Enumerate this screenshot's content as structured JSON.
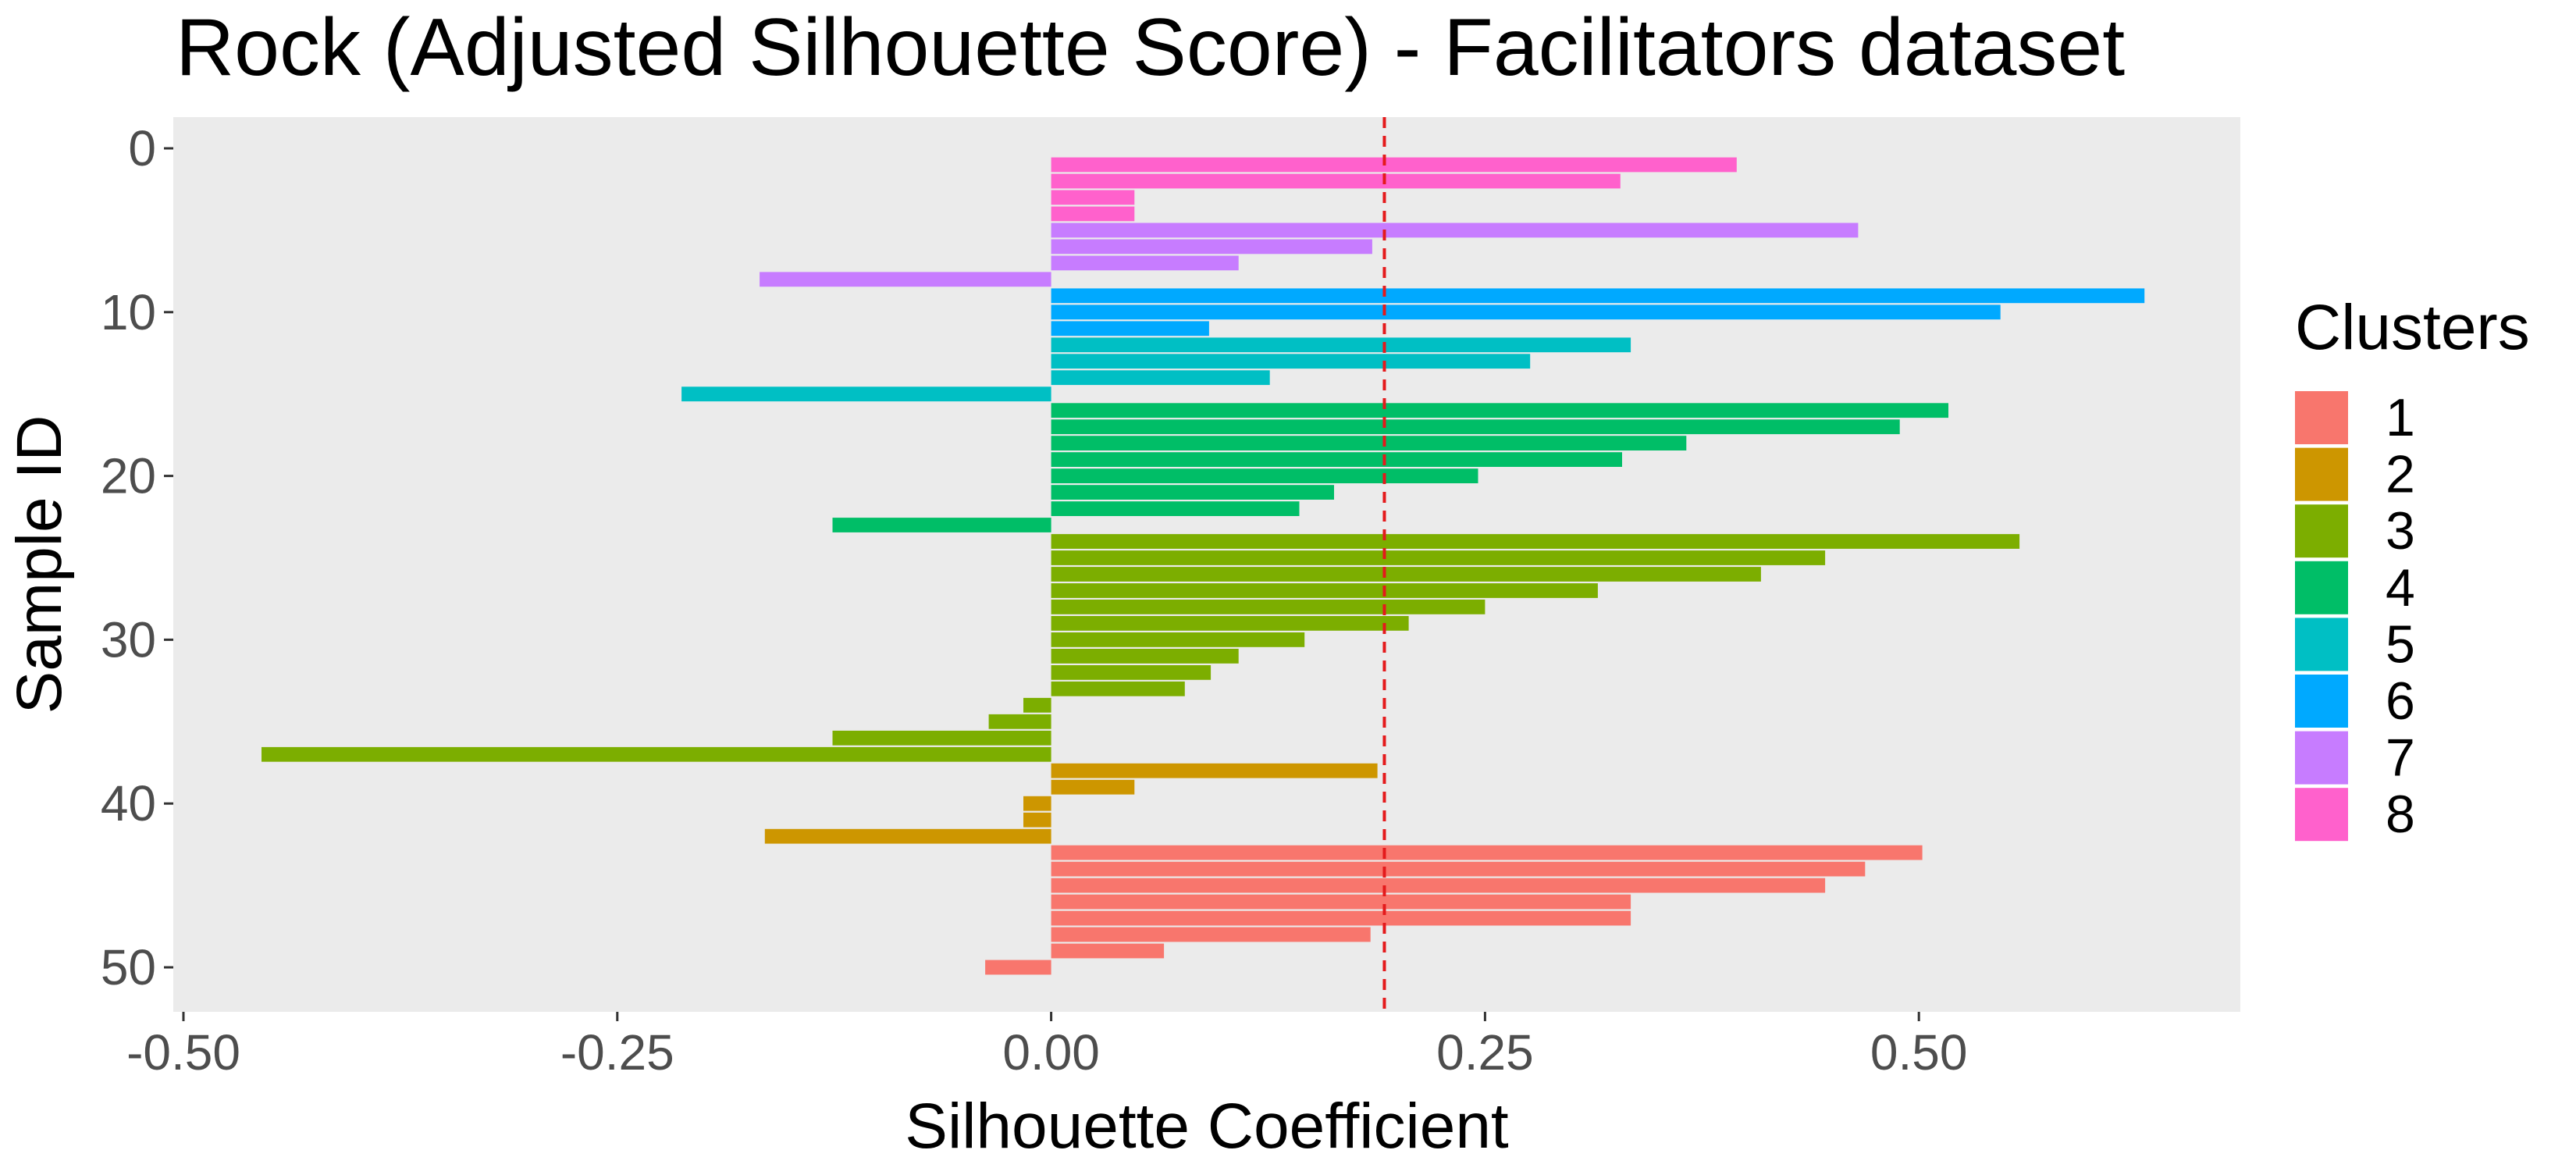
{
  "chart_data": {
    "type": "bar",
    "orientation": "horizontal",
    "title": "Rock (Adjusted Silhouette Score) - Facilitators dataset",
    "xlabel": "Silhouette Coefficient",
    "ylabel": "Sample ID",
    "xlim": [
      -0.5,
      0.68
    ],
    "ylim": [
      0,
      52
    ],
    "x_ticks": [
      -0.5,
      -0.25,
      0.0,
      0.25,
      0.5
    ],
    "x_tick_labels": [
      "-0.50",
      "-0.25",
      "0.00",
      "0.25",
      "0.50"
    ],
    "y_ticks": [
      0,
      10,
      20,
      30,
      40,
      50
    ],
    "y_tick_labels": [
      "0",
      "10",
      "20",
      "30",
      "40",
      "50"
    ],
    "reference_line": {
      "x": 0.192,
      "style": "dashed",
      "color": "#e41a1c"
    },
    "grid": false,
    "panel_background": "#ebebeb",
    "legend": {
      "title": "Clusters",
      "position": "right",
      "entries": [
        "1",
        "2",
        "3",
        "4",
        "5",
        "6",
        "7",
        "8"
      ]
    },
    "cluster_colors": {
      "1": "#F8766D",
      "2": "#CD9600",
      "3": "#7CAE00",
      "4": "#00BE67",
      "5": "#00BFC4",
      "6": "#00A9FF",
      "7": "#C77CFF",
      "8": "#FF61CC"
    },
    "bars": [
      {
        "id": 1,
        "value": 0.395,
        "cluster": "8"
      },
      {
        "id": 2,
        "value": 0.328,
        "cluster": "8"
      },
      {
        "id": 3,
        "value": 0.048,
        "cluster": "8"
      },
      {
        "id": 4,
        "value": 0.048,
        "cluster": "8"
      },
      {
        "id": 5,
        "value": 0.465,
        "cluster": "7"
      },
      {
        "id": 6,
        "value": 0.185,
        "cluster": "7"
      },
      {
        "id": 7,
        "value": 0.108,
        "cluster": "7"
      },
      {
        "id": 8,
        "value": -0.168,
        "cluster": "7"
      },
      {
        "id": 9,
        "value": 0.63,
        "cluster": "6"
      },
      {
        "id": 10,
        "value": 0.547,
        "cluster": "6"
      },
      {
        "id": 11,
        "value": 0.091,
        "cluster": "6"
      },
      {
        "id": 12,
        "value": 0.334,
        "cluster": "5"
      },
      {
        "id": 13,
        "value": 0.276,
        "cluster": "5"
      },
      {
        "id": 14,
        "value": 0.126,
        "cluster": "5"
      },
      {
        "id": 15,
        "value": -0.213,
        "cluster": "5"
      },
      {
        "id": 16,
        "value": 0.517,
        "cluster": "4"
      },
      {
        "id": 17,
        "value": 0.489,
        "cluster": "4"
      },
      {
        "id": 18,
        "value": 0.366,
        "cluster": "4"
      },
      {
        "id": 19,
        "value": 0.329,
        "cluster": "4"
      },
      {
        "id": 20,
        "value": 0.246,
        "cluster": "4"
      },
      {
        "id": 21,
        "value": 0.163,
        "cluster": "4"
      },
      {
        "id": 22,
        "value": 0.143,
        "cluster": "4"
      },
      {
        "id": 23,
        "value": -0.126,
        "cluster": "4"
      },
      {
        "id": 24,
        "value": 0.558,
        "cluster": "3"
      },
      {
        "id": 25,
        "value": 0.446,
        "cluster": "3"
      },
      {
        "id": 26,
        "value": 0.409,
        "cluster": "3"
      },
      {
        "id": 27,
        "value": 0.315,
        "cluster": "3"
      },
      {
        "id": 28,
        "value": 0.25,
        "cluster": "3"
      },
      {
        "id": 29,
        "value": 0.206,
        "cluster": "3"
      },
      {
        "id": 30,
        "value": 0.146,
        "cluster": "3"
      },
      {
        "id": 31,
        "value": 0.108,
        "cluster": "3"
      },
      {
        "id": 32,
        "value": 0.092,
        "cluster": "3"
      },
      {
        "id": 33,
        "value": 0.077,
        "cluster": "3"
      },
      {
        "id": 34,
        "value": -0.016,
        "cluster": "3"
      },
      {
        "id": 35,
        "value": -0.036,
        "cluster": "3"
      },
      {
        "id": 36,
        "value": -0.126,
        "cluster": "3"
      },
      {
        "id": 37,
        "value": -0.455,
        "cluster": "3"
      },
      {
        "id": 38,
        "value": 0.188,
        "cluster": "2"
      },
      {
        "id": 39,
        "value": 0.048,
        "cluster": "2"
      },
      {
        "id": 40,
        "value": -0.016,
        "cluster": "2"
      },
      {
        "id": 41,
        "value": -0.016,
        "cluster": "2"
      },
      {
        "id": 42,
        "value": -0.165,
        "cluster": "2"
      },
      {
        "id": 43,
        "value": 0.502,
        "cluster": "1"
      },
      {
        "id": 44,
        "value": 0.469,
        "cluster": "1"
      },
      {
        "id": 45,
        "value": 0.446,
        "cluster": "1"
      },
      {
        "id": 46,
        "value": 0.334,
        "cluster": "1"
      },
      {
        "id": 47,
        "value": 0.334,
        "cluster": "1"
      },
      {
        "id": 48,
        "value": 0.184,
        "cluster": "1"
      },
      {
        "id": 49,
        "value": 0.065,
        "cluster": "1"
      },
      {
        "id": 50,
        "value": -0.038,
        "cluster": "1"
      }
    ]
  }
}
